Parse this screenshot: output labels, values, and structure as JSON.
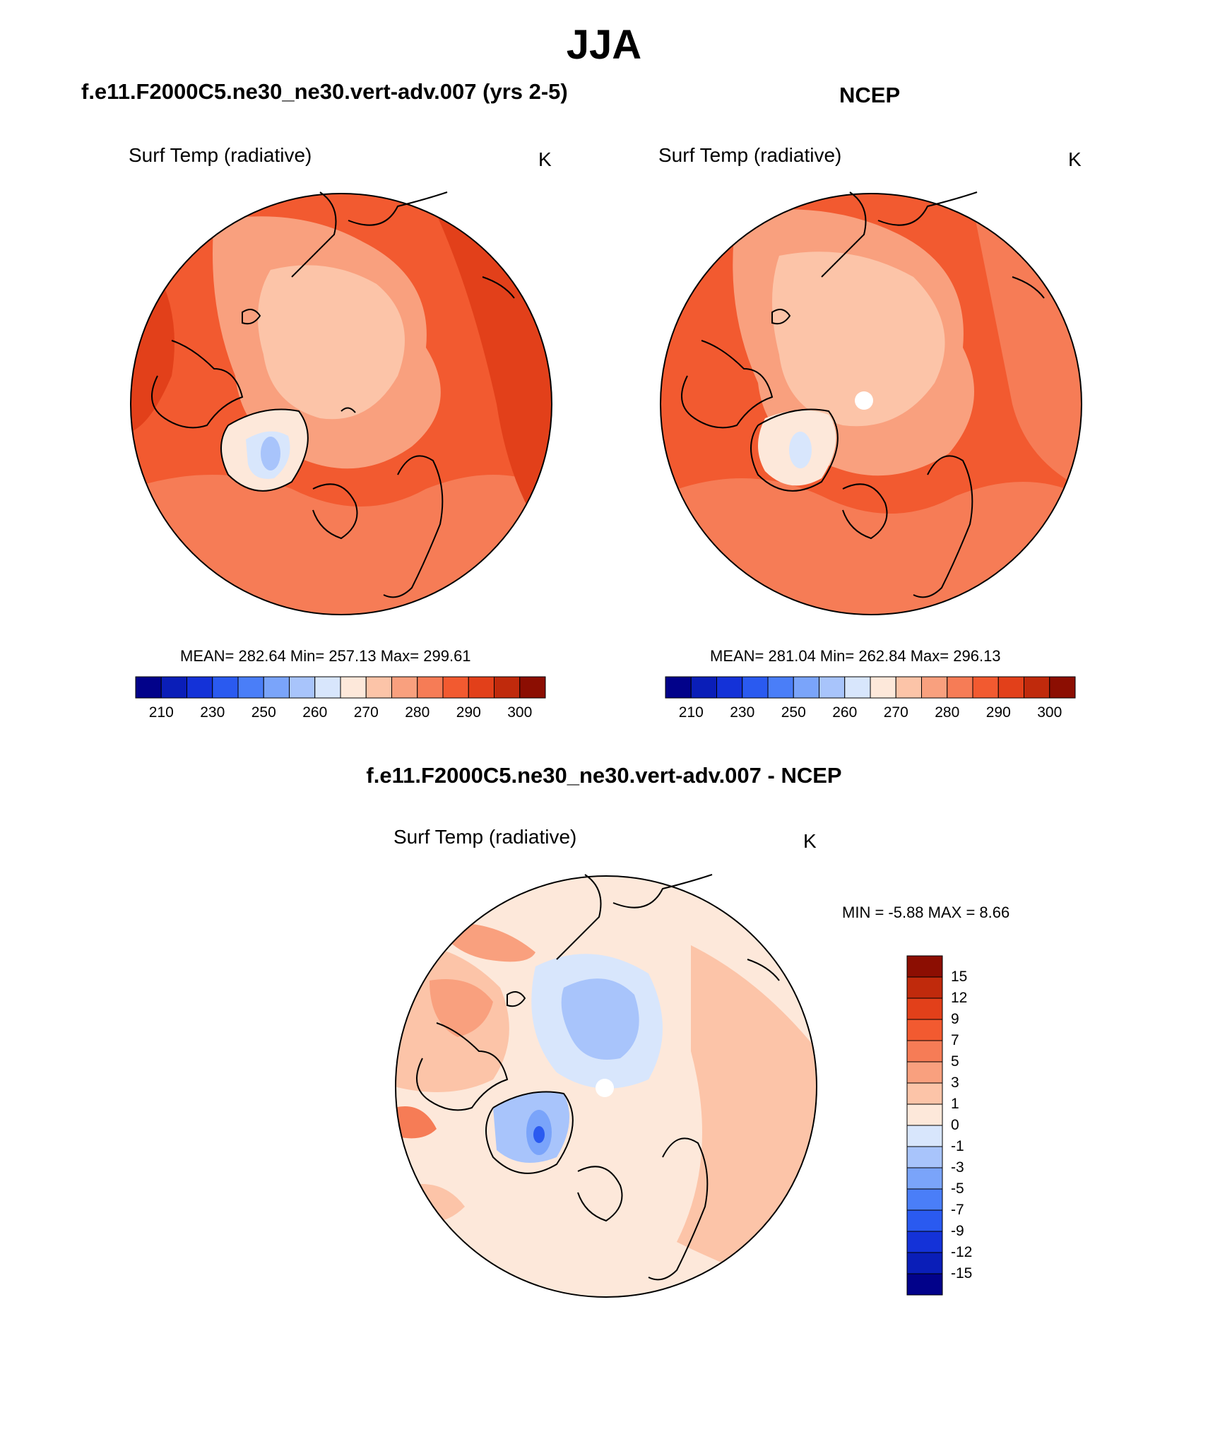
{
  "page": {
    "season": "JJA",
    "difference_title": "f.e11.F2000C5.ne30_ne30.vert-adv.007 - NCEP"
  },
  "panels": [
    {
      "title": "f.e11.F2000C5.ne30_ne30.vert-adv.007 (yrs 2-5)",
      "variable": "Surf Temp (radiative)",
      "units": "K",
      "stats": "MEAN= 282.64  Min= 257.13  Max= 299.61",
      "pole_mask": false
    },
    {
      "title": "NCEP",
      "variable": "Surf Temp (radiative)",
      "units": "K",
      "stats": "MEAN= 281.04  Min= 262.84  Max= 296.13",
      "pole_mask": true
    },
    {
      "title": "",
      "variable": "Surf Temp (radiative)",
      "units": "K",
      "stats": "MIN =  -5.88 MAX =   8.66",
      "pole_mask": true
    }
  ],
  "colorbar_abs": {
    "colors": [
      "#02028a",
      "#0a1eb8",
      "#1432d8",
      "#2a5af0",
      "#4a7ef8",
      "#7aa4fa",
      "#a8c4fb",
      "#d8e6fc",
      "#fde8da",
      "#fcc4a8",
      "#f9a07e",
      "#f67c56",
      "#f25a30",
      "#e2401a",
      "#c02a0c",
      "#8c0e02"
    ],
    "ticks": [
      "210",
      "230",
      "250",
      "260",
      "270",
      "280",
      "290",
      "300"
    ]
  },
  "colorbar_diff": {
    "colors": [
      "#02028a",
      "#0a1eb8",
      "#1432d8",
      "#2a5af0",
      "#4a7ef8",
      "#7aa4fa",
      "#a8c4fb",
      "#d8e6fc",
      "#fde8da",
      "#fcc4a8",
      "#f9a07e",
      "#f67c56",
      "#f25a30",
      "#e2401a",
      "#c02a0c",
      "#8c0e02"
    ],
    "ticks": [
      "15",
      "12",
      "9",
      "7",
      "5",
      "3",
      "1",
      "0",
      "-1",
      "-3",
      "-5",
      "-7",
      "-9",
      "-12",
      "-15"
    ]
  },
  "chart_data": [
    {
      "type": "heatmap",
      "projection": "north-polar stereographic",
      "variable": "Surf Temp (radiative)",
      "units": "K",
      "mean": 282.64,
      "min": 257.13,
      "max": 299.61,
      "colorbar_ticks": [
        210,
        230,
        250,
        260,
        270,
        280,
        290,
        300
      ]
    },
    {
      "type": "heatmap",
      "projection": "north-polar stereographic",
      "variable": "Surf Temp (radiative)",
      "units": "K",
      "mean": 281.04,
      "min": 262.84,
      "max": 296.13,
      "colorbar_ticks": [
        210,
        230,
        250,
        260,
        270,
        280,
        290,
        300
      ]
    },
    {
      "type": "heatmap",
      "projection": "north-polar stereographic",
      "variable": "Surf Temp (radiative)",
      "units": "K",
      "min": -5.88,
      "max": 8.66,
      "colorbar_ticks": [
        15,
        12,
        9,
        7,
        5,
        3,
        1,
        0,
        -1,
        -3,
        -5,
        -7,
        -9,
        -12,
        -15
      ]
    }
  ]
}
